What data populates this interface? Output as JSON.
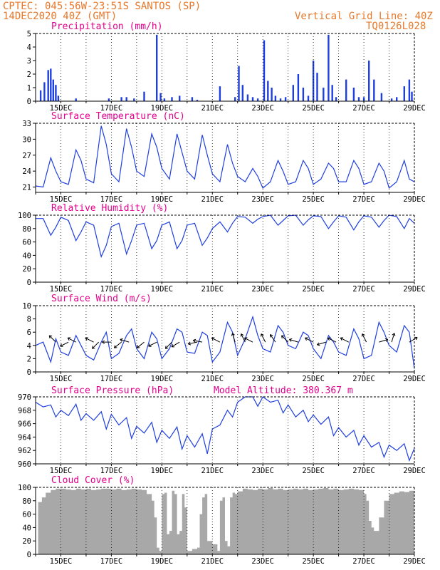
{
  "header": {
    "line1": "CPTEC:  045:56W-23:51S  SANTOS (SP)",
    "line2": "14DEC2020 40Z (GMT)",
    "right1": "Vertical Grid Line: 40Z",
    "right2": "TQ0126L028"
  },
  "x_axis": {
    "start_day": 14,
    "end_day": 29,
    "tick_days": [
      15,
      17,
      19,
      21,
      23,
      25,
      27,
      29
    ],
    "tick_labels": [
      "15DEC",
      "17DEC",
      "19DEC",
      "21DEC",
      "23DEC",
      "25DEC",
      "27DEC",
      "29DEC"
    ]
  },
  "colors": {
    "series": "#1f3fe0",
    "cloud": "#a8a8a8",
    "title": "#e3008c",
    "header": "#e8782a"
  },
  "chart_data": [
    {
      "id": "precip",
      "type": "bar",
      "title": "Precipitation (mm/h)",
      "ylim": [
        0,
        5
      ],
      "yticks": [
        0,
        1,
        2,
        3,
        4,
        5
      ],
      "x_days": [
        14.2,
        14.35,
        14.5,
        14.6,
        14.7,
        14.8,
        14.9,
        15.6,
        16.9,
        17.4,
        17.6,
        17.9,
        18.3,
        18.8,
        18.95,
        19.1,
        19.4,
        19.7,
        20.2,
        20.4,
        21.3,
        21.9,
        22.05,
        22.2,
        22.4,
        22.6,
        22.8,
        23.05,
        23.2,
        23.35,
        23.5,
        23.7,
        23.9,
        24.2,
        24.4,
        24.6,
        24.8,
        25.0,
        25.15,
        25.4,
        25.6,
        25.75,
        25.9,
        26.3,
        26.6,
        26.8,
        27.0,
        27.2,
        27.4,
        27.7,
        28.1,
        28.3,
        28.6,
        28.8,
        28.9
      ],
      "values": [
        0.8,
        1.4,
        2.3,
        2.4,
        1.6,
        1.2,
        0.4,
        0.2,
        0.2,
        0.3,
        0.3,
        0.2,
        0.7,
        4.9,
        0.6,
        0.2,
        0.3,
        0.4,
        0.3,
        0.1,
        1.1,
        0.3,
        2.6,
        1.2,
        0.5,
        0.3,
        0.2,
        4.5,
        1.5,
        1.0,
        0.4,
        0.2,
        0.3,
        1.2,
        2.0,
        1.0,
        0.4,
        3.0,
        2.1,
        1.0,
        4.9,
        1.2,
        0.3,
        1.6,
        1.0,
        0.3,
        0.3,
        3.0,
        1.6,
        0.6,
        0.2,
        0.3,
        1.1,
        1.6,
        0.7
      ]
    },
    {
      "id": "temp",
      "type": "line",
      "title": "Surface Temperature (nC)",
      "ylim": [
        20,
        33
      ],
      "yticks": [
        21,
        24,
        27,
        30,
        33
      ],
      "x": [
        14.0,
        14.3,
        14.6,
        14.8,
        15.0,
        15.3,
        15.6,
        15.8,
        16.0,
        16.3,
        16.6,
        16.8,
        17.0,
        17.3,
        17.6,
        17.8,
        18.0,
        18.3,
        18.6,
        18.8,
        19.0,
        19.3,
        19.6,
        19.8,
        20.0,
        20.3,
        20.6,
        20.8,
        21.0,
        21.3,
        21.6,
        21.8,
        22.0,
        22.3,
        22.6,
        22.8,
        23.0,
        23.3,
        23.6,
        23.8,
        24.0,
        24.3,
        24.6,
        24.8,
        25.0,
        25.3,
        25.6,
        25.8,
        26.0,
        26.3,
        26.6,
        26.8,
        27.0,
        27.3,
        27.6,
        27.8,
        28.0,
        28.3,
        28.6,
        28.8,
        29.0
      ],
      "y": [
        21.2,
        21.0,
        26.5,
        24.0,
        22.0,
        21.5,
        28.0,
        26.0,
        22.5,
        21.8,
        32.5,
        29.0,
        23.5,
        22.0,
        32.0,
        28.5,
        24.0,
        23.0,
        31.0,
        28.5,
        24.5,
        22.5,
        31.0,
        27.5,
        24.0,
        22.5,
        30.8,
        27.0,
        23.5,
        22.0,
        29.0,
        25.5,
        23.0,
        22.0,
        24.5,
        23.0,
        20.8,
        22.0,
        26.0,
        24.0,
        21.5,
        22.0,
        26.0,
        24.5,
        21.5,
        22.5,
        25.5,
        24.5,
        22.0,
        22.0,
        26.0,
        24.5,
        21.5,
        22.0,
        25.5,
        24.0,
        20.8,
        22.0,
        26.0,
        22.5,
        22.0
      ]
    },
    {
      "id": "rh",
      "type": "line",
      "title": "Relative Humidity (%)",
      "ylim": [
        0,
        100
      ],
      "yticks": [
        0,
        20,
        40,
        60,
        80,
        100
      ],
      "x": [
        14.0,
        14.3,
        14.6,
        14.8,
        15.0,
        15.3,
        15.6,
        15.8,
        16.0,
        16.3,
        16.6,
        16.8,
        17.0,
        17.3,
        17.6,
        17.8,
        18.0,
        18.3,
        18.6,
        18.8,
        19.0,
        19.3,
        19.6,
        19.8,
        20.0,
        20.3,
        20.6,
        20.8,
        21.0,
        21.3,
        21.6,
        21.8,
        22.0,
        22.3,
        22.6,
        22.8,
        23.0,
        23.3,
        23.6,
        23.8,
        24.0,
        24.3,
        24.6,
        24.8,
        25.0,
        25.3,
        25.6,
        25.8,
        26.0,
        26.3,
        26.6,
        26.8,
        27.0,
        27.3,
        27.6,
        27.8,
        28.0,
        28.3,
        28.6,
        28.8,
        29.0
      ],
      "y": [
        95,
        95,
        70,
        82,
        97,
        92,
        62,
        75,
        90,
        85,
        38,
        55,
        83,
        88,
        42,
        62,
        85,
        88,
        50,
        62,
        85,
        90,
        50,
        62,
        85,
        88,
        55,
        66,
        80,
        90,
        75,
        88,
        98,
        97,
        88,
        94,
        98,
        100,
        85,
        92,
        99,
        100,
        85,
        93,
        99,
        98,
        80,
        90,
        99,
        97,
        78,
        90,
        99,
        97,
        82,
        92,
        100,
        98,
        80,
        95,
        88
      ]
    },
    {
      "id": "wind",
      "type": "line",
      "title": "Surface Wind (m/s)",
      "ylim": [
        0,
        10
      ],
      "yticks": [
        0,
        2,
        4,
        6,
        8,
        10
      ],
      "x": [
        14.0,
        14.3,
        14.6,
        14.8,
        15.0,
        15.3,
        15.6,
        15.8,
        16.0,
        16.3,
        16.6,
        16.8,
        17.0,
        17.3,
        17.6,
        17.8,
        18.0,
        18.3,
        18.6,
        18.8,
        19.0,
        19.3,
        19.6,
        19.8,
        20.0,
        20.3,
        20.6,
        20.8,
        21.0,
        21.3,
        21.6,
        21.8,
        22.0,
        22.3,
        22.6,
        22.8,
        23.0,
        23.3,
        23.6,
        23.8,
        24.0,
        24.3,
        24.6,
        24.8,
        25.0,
        25.3,
        25.6,
        25.8,
        26.0,
        26.3,
        26.6,
        26.8,
        27.0,
        27.3,
        27.6,
        27.8,
        28.0,
        28.3,
        28.6,
        28.8,
        29.0
      ],
      "y": [
        4.0,
        4.5,
        1.5,
        5.0,
        3.0,
        2.5,
        5.5,
        4.0,
        2.5,
        1.8,
        4.5,
        6.0,
        2.0,
        2.8,
        5.5,
        6.5,
        3.5,
        2.0,
        6.0,
        5.0,
        2.0,
        3.5,
        6.5,
        6.0,
        3.0,
        2.8,
        6.0,
        5.5,
        1.5,
        3.0,
        7.5,
        6.0,
        2.5,
        5.0,
        8.3,
        5.5,
        3.5,
        3.0,
        7.0,
        6.0,
        4.0,
        3.5,
        6.0,
        5.5,
        3.5,
        2.0,
        5.5,
        4.5,
        3.0,
        2.5,
        6.5,
        5.0,
        2.0,
        2.5,
        7.5,
        6.0,
        4.0,
        3.0,
        7.0,
        6.0,
        0.5
      ],
      "barbs": [
        {
          "day": 14.8,
          "u": -1,
          "v": 1
        },
        {
          "day": 15.3,
          "u": -1,
          "v": -0.5
        },
        {
          "day": 15.6,
          "u": -1,
          "v": 0.5
        },
        {
          "day": 16.3,
          "u": -1,
          "v": 0.5
        },
        {
          "day": 16.5,
          "u": -1,
          "v": -1
        },
        {
          "day": 17.0,
          "u": -1,
          "v": 0
        },
        {
          "day": 17.4,
          "u": -1,
          "v": -0.8
        },
        {
          "day": 17.7,
          "u": -1,
          "v": 0.3
        },
        {
          "day": 18.3,
          "u": -1,
          "v": -0.8
        },
        {
          "day": 18.8,
          "u": -1,
          "v": -0.5
        },
        {
          "day": 19.4,
          "u": -1,
          "v": -1
        },
        {
          "day": 19.7,
          "u": -1,
          "v": -0.6
        },
        {
          "day": 20.4,
          "u": -1,
          "v": -0.2
        },
        {
          "day": 20.6,
          "u": -1,
          "v": 0.2
        },
        {
          "day": 21.3,
          "u": -1,
          "v": 0.5
        },
        {
          "day": 21.9,
          "u": -0.3,
          "v": 1
        },
        {
          "day": 22.3,
          "u": -0.5,
          "v": 1
        },
        {
          "day": 22.6,
          "u": -1,
          "v": 0.5
        },
        {
          "day": 23.1,
          "u": -0.5,
          "v": 1
        },
        {
          "day": 23.5,
          "u": -0.7,
          "v": 1
        },
        {
          "day": 24.0,
          "u": -0.8,
          "v": 0.8
        },
        {
          "day": 24.4,
          "u": -1,
          "v": 0.3
        },
        {
          "day": 25.0,
          "u": -1,
          "v": 0.5
        },
        {
          "day": 25.5,
          "u": -1,
          "v": -0.3
        },
        {
          "day": 25.9,
          "u": -1,
          "v": 0.5
        },
        {
          "day": 26.4,
          "u": -1,
          "v": 0.5
        },
        {
          "day": 27.1,
          "u": -0.5,
          "v": 1
        },
        {
          "day": 27.6,
          "u": 1,
          "v": 0.3
        },
        {
          "day": 28.1,
          "u": 0.3,
          "v": 1
        },
        {
          "day": 28.8,
          "u": 1,
          "v": 0.6
        }
      ]
    },
    {
      "id": "pressure",
      "type": "line",
      "title": "Surface Pressure (hPa)",
      "extra_label": "Model Altitude: 380.367 m",
      "ylim": [
        960,
        970
      ],
      "yticks": [
        960,
        962,
        964,
        966,
        968,
        970
      ],
      "x": [
        14.0,
        14.3,
        14.6,
        14.8,
        15.0,
        15.3,
        15.6,
        15.8,
        16.0,
        16.3,
        16.6,
        16.8,
        17.0,
        17.3,
        17.6,
        17.8,
        18.0,
        18.3,
        18.6,
        18.8,
        19.0,
        19.3,
        19.6,
        19.8,
        20.0,
        20.3,
        20.6,
        20.8,
        21.0,
        21.3,
        21.6,
        21.8,
        22.0,
        22.3,
        22.6,
        22.8,
        23.0,
        23.3,
        23.6,
        23.8,
        24.0,
        24.3,
        24.6,
        24.8,
        25.0,
        25.3,
        25.6,
        25.8,
        26.0,
        26.3,
        26.6,
        26.8,
        27.0,
        27.3,
        27.6,
        27.8,
        28.0,
        28.3,
        28.6,
        28.8,
        29.0
      ],
      "y": [
        969.2,
        968.5,
        968.8,
        967.0,
        968.0,
        967.2,
        968.9,
        966.5,
        967.5,
        966.5,
        967.8,
        965.2,
        967.4,
        965.8,
        966.9,
        963.8,
        965.6,
        964.6,
        966.2,
        963.2,
        965.0,
        963.8,
        965.5,
        962.2,
        964.2,
        962.5,
        964.5,
        961.5,
        965.2,
        965.8,
        968.0,
        967.0,
        969.2,
        970.0,
        970.0,
        968.6,
        970.0,
        969.2,
        969.5,
        967.6,
        968.8,
        967.0,
        968.0,
        966.3,
        967.3,
        965.9,
        967.0,
        964.2,
        965.4,
        964.0,
        965.0,
        962.8,
        964.2,
        962.5,
        963.2,
        961.0,
        962.8,
        962.0,
        963.0,
        960.5,
        962.3
      ]
    },
    {
      "id": "cloud",
      "type": "area",
      "title": "Cloud Cover (%)",
      "ylim": [
        0,
        100
      ],
      "yticks": [
        0,
        20,
        40,
        60,
        80,
        100
      ],
      "x": [
        14.0,
        14.1,
        14.25,
        14.4,
        14.6,
        14.8,
        15.0,
        15.2,
        15.4,
        15.6,
        15.8,
        16.0,
        16.2,
        16.4,
        16.6,
        16.8,
        17.0,
        17.2,
        17.4,
        17.6,
        17.8,
        18.0,
        18.2,
        18.4,
        18.6,
        18.7,
        18.8,
        18.9,
        19.0,
        19.1,
        19.2,
        19.3,
        19.4,
        19.5,
        19.6,
        19.7,
        19.8,
        19.9,
        20.0,
        20.2,
        20.4,
        20.5,
        20.6,
        20.7,
        20.8,
        21.0,
        21.2,
        21.3,
        21.4,
        21.5,
        21.6,
        21.7,
        21.8,
        21.9,
        22.0,
        22.2,
        22.4,
        22.6,
        22.8,
        23.0,
        23.2,
        23.4,
        23.6,
        23.8,
        24.0,
        24.2,
        24.4,
        24.6,
        24.8,
        25.0,
        25.2,
        25.4,
        25.6,
        25.8,
        26.0,
        26.2,
        26.4,
        26.6,
        26.8,
        27.0,
        27.1,
        27.2,
        27.3,
        27.4,
        27.6,
        27.8,
        28.0,
        28.2,
        28.4,
        28.6,
        28.8,
        29.0
      ],
      "y": [
        0,
        78,
        85,
        92,
        96,
        98,
        98,
        97,
        96,
        98,
        97,
        98,
        96,
        97,
        98,
        98,
        97,
        98,
        96,
        97,
        98,
        97,
        96,
        90,
        80,
        55,
        10,
        5,
        90,
        92,
        30,
        35,
        95,
        90,
        30,
        35,
        90,
        70,
        5,
        8,
        10,
        60,
        85,
        90,
        20,
        15,
        5,
        80,
        85,
        20,
        12,
        85,
        92,
        90,
        94,
        98,
        97,
        96,
        98,
        97,
        99,
        97,
        98,
        96,
        97,
        98,
        97,
        98,
        96,
        97,
        98,
        99,
        97,
        98,
        96,
        97,
        98,
        97,
        96,
        90,
        80,
        50,
        40,
        35,
        55,
        80,
        90,
        92,
        94,
        93,
        95,
        93
      ]
    }
  ]
}
